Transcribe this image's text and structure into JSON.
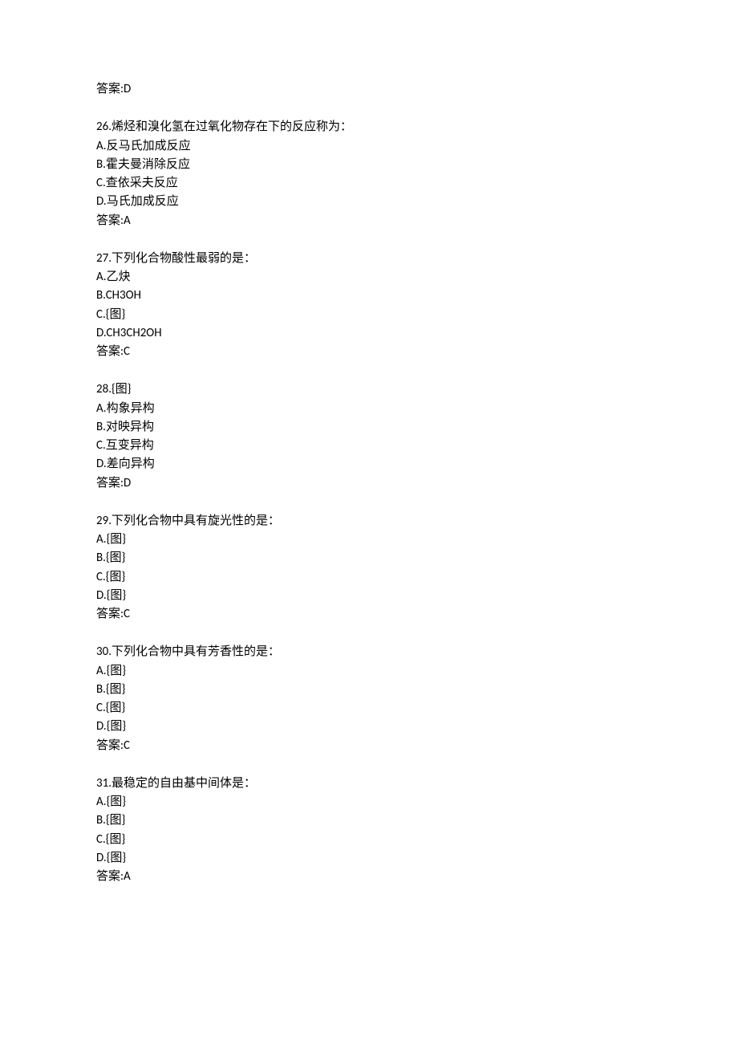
{
  "page": {
    "background_color": "#ffffff",
    "text_color": "#000000",
    "base_fontsize": 15,
    "line_height": 1.55,
    "font_family": "Calibri, SimSun, Microsoft YaHei, sans-serif",
    "answer_prefix": "答案:",
    "answer_prev": {
      "value": "D"
    },
    "questions": [
      {
        "number": "26",
        "stem": "烯烃和溴化氢在过氧化物存在下的反应称为：",
        "options": [
          {
            "label": "A",
            "text": "反马氏加成反应"
          },
          {
            "label": "B",
            "text": "霍夫曼消除反应"
          },
          {
            "label": "C",
            "text": "查依采夫反应"
          },
          {
            "label": "D",
            "text": "马氏加成反应"
          }
        ],
        "answer": "A"
      },
      {
        "number": "27",
        "stem": "下列化合物酸性最弱的是：",
        "options": [
          {
            "label": "A",
            "text": "乙炔"
          },
          {
            "label": "B",
            "text": "CH3OH"
          },
          {
            "label": "C",
            "text": "{图}"
          },
          {
            "label": "D",
            "text": "CH3CH2OH"
          }
        ],
        "answer": "C"
      },
      {
        "number": "28",
        "stem": "{图}",
        "options": [
          {
            "label": "A",
            "text": "构象异构"
          },
          {
            "label": "B",
            "text": "对映异构"
          },
          {
            "label": "C",
            "text": "互变异构"
          },
          {
            "label": "D",
            "text": "差向异构"
          }
        ],
        "answer": "D"
      },
      {
        "number": "29",
        "stem": "下列化合物中具有旋光性的是：",
        "options": [
          {
            "label": "A",
            "text": "{图}"
          },
          {
            "label": "B",
            "text": "{图}"
          },
          {
            "label": "C",
            "text": "{图}"
          },
          {
            "label": "D",
            "text": "{图}"
          }
        ],
        "answer": "C"
      },
      {
        "number": "30",
        "stem": "下列化合物中具有芳香性的是：",
        "options": [
          {
            "label": "A",
            "text": "{图}"
          },
          {
            "label": "B",
            "text": "{图}"
          },
          {
            "label": "C",
            "text": "{图}"
          },
          {
            "label": "D",
            "text": "{图}"
          }
        ],
        "answer": "C"
      },
      {
        "number": "31",
        "stem": "最稳定的自由基中间体是：",
        "options": [
          {
            "label": "A",
            "text": "{图}"
          },
          {
            "label": "B",
            "text": "{图}"
          },
          {
            "label": "C",
            "text": "{图}"
          },
          {
            "label": "D",
            "text": "{图}"
          }
        ],
        "answer": "A"
      }
    ]
  }
}
